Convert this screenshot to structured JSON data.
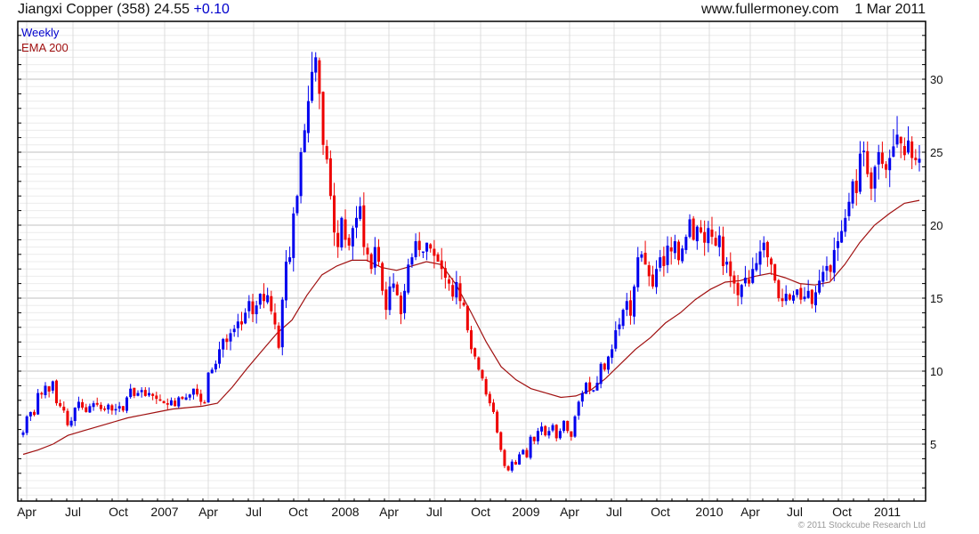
{
  "header": {
    "title": "Jiangxi Copper (358) 24.55",
    "change": "+0.10",
    "site": "www.fullermoney.com",
    "date": "1 Mar 2011"
  },
  "footer": "© 2011 Stockcube Research Ltd",
  "colors": {
    "up": "#0000ee",
    "down": "#ee0000",
    "ema": "#a01010"
  },
  "chart_data": {
    "type": "candlestick",
    "title": "Jiangxi Copper (358)",
    "legend": [
      "Weekly",
      "EMA 200"
    ],
    "legend_placement": "top-left",
    "ylim": [
      1.1,
      34
    ],
    "y_ticks": [
      5,
      10,
      15,
      20,
      25,
      30
    ],
    "x_ticks": [
      "Apr",
      "Jul",
      "Oct",
      "2007",
      "Apr",
      "Jul",
      "Oct",
      "2008",
      "Apr",
      "Jul",
      "Oct",
      "2009",
      "Apr",
      "Jul",
      "Oct",
      "2010",
      "Apr",
      "Jul",
      "Oct",
      "2011"
    ],
    "grid": true,
    "weekly_close": [
      5.8,
      6.9,
      7.2,
      7.0,
      8.5,
      8.4,
      9.0,
      8.6,
      9.3,
      7.8,
      7.6,
      7.3,
      6.3,
      6.6,
      7.5,
      7.9,
      7.5,
      7.2,
      7.6,
      7.8,
      7.7,
      7.4,
      7.4,
      7.7,
      7.3,
      7.4,
      7.6,
      7.3,
      8.2,
      8.8,
      8.3,
      8.5,
      8.7,
      8.3,
      8.5,
      8.3,
      8.1,
      8.0,
      7.8,
      7.7,
      8.0,
      7.6,
      8.2,
      8.1,
      8.2,
      8.4,
      8.8,
      8.4,
      7.9,
      7.8,
      9.9,
      10.1,
      10.5,
      11.5,
      12.2,
      12.0,
      12.6,
      12.9,
      13.4,
      13.2,
      14.0,
      14.8,
      13.9,
      14.5,
      15.3,
      14.8,
      15.2,
      14.1,
      13.2,
      11.6,
      14.9,
      17.5,
      17.8,
      20.8,
      22.0,
      25.0,
      26.5,
      28.5,
      30.5,
      31.5,
      29.0,
      25.5,
      24.5,
      22.0,
      19.5,
      18.5,
      20.5,
      19.0,
      18.6,
      19.8,
      20.5,
      21.3,
      18.5,
      18.0,
      17.0,
      18.5,
      17.5,
      15.5,
      14.2,
      15.8,
      16.0,
      15.2,
      13.9,
      15.5,
      17.3,
      17.8,
      18.9,
      18.3,
      18.2,
      18.8,
      18.4,
      17.9,
      17.5,
      17.0,
      16.4,
      16.0,
      15.1,
      16.1,
      14.8,
      14.5,
      12.8,
      11.5,
      11.0,
      10.1,
      9.5,
      8.4,
      7.8,
      7.2,
      5.8,
      4.6,
      3.5,
      3.2,
      3.8,
      3.6,
      4.3,
      4.6,
      4.1,
      5.5,
      5.2,
      5.9,
      6.2,
      5.6,
      5.9,
      6.3,
      5.4,
      5.9,
      6.6,
      5.9,
      5.5,
      6.9,
      7.9,
      8.5,
      9.2,
      8.7,
      8.7,
      9.2,
      10.5,
      10.1,
      11.0,
      11.5,
      12.8,
      13.2,
      14.2,
      14.8,
      13.8,
      15.8,
      17.8,
      18.0,
      17.3,
      16.5,
      15.8,
      17.0,
      17.8,
      17.2,
      18.6,
      18.2,
      18.9,
      17.6,
      18.4,
      19.2,
      20.4,
      19.0,
      19.9,
      19.5,
      18.8,
      19.8,
      19.2,
      18.6,
      19.3,
      17.2,
      17.5,
      16.5,
      16.0,
      15.2,
      15.9,
      16.4,
      16.0,
      17.0,
      17.4,
      18.2,
      18.8,
      17.8,
      17.3,
      16.2,
      15.0,
      14.8,
      15.3,
      14.9,
      15.2,
      15.6,
      14.9,
      15.1,
      15.5,
      14.6,
      15.4,
      16.2,
      16.8,
      17.2,
      16.8,
      18.3,
      18.9,
      19.6,
      20.5,
      21.6,
      23.0,
      22.2,
      24.9,
      25.1,
      23.5,
      22.5,
      24.0,
      25.0,
      24.2,
      23.8,
      24.6,
      25.4,
      26.2,
      25.6,
      24.8,
      25.8,
      24.6,
      24.45,
      24.55
    ],
    "ema200_monthly": [
      4.3,
      4.6,
      5.0,
      5.6,
      5.9,
      6.2,
      6.5,
      6.8,
      7.0,
      7.2,
      7.4,
      7.5,
      7.6,
      7.8,
      8.9,
      10.2,
      11.4,
      12.6,
      13.5,
      15.2,
      16.6,
      17.2,
      17.6,
      17.6,
      17.1,
      16.9,
      17.2,
      17.5,
      17.3,
      15.9,
      14.0,
      12.0,
      10.3,
      9.4,
      8.8,
      8.5,
      8.2,
      8.3,
      8.7,
      9.5,
      10.5,
      11.5,
      12.3,
      13.3,
      14.0,
      14.9,
      15.6,
      16.1,
      16.2,
      16.5,
      16.7,
      16.4,
      16.0,
      15.9,
      16.1,
      17.3,
      18.8,
      20.0,
      20.8,
      21.5,
      21.7
    ]
  }
}
